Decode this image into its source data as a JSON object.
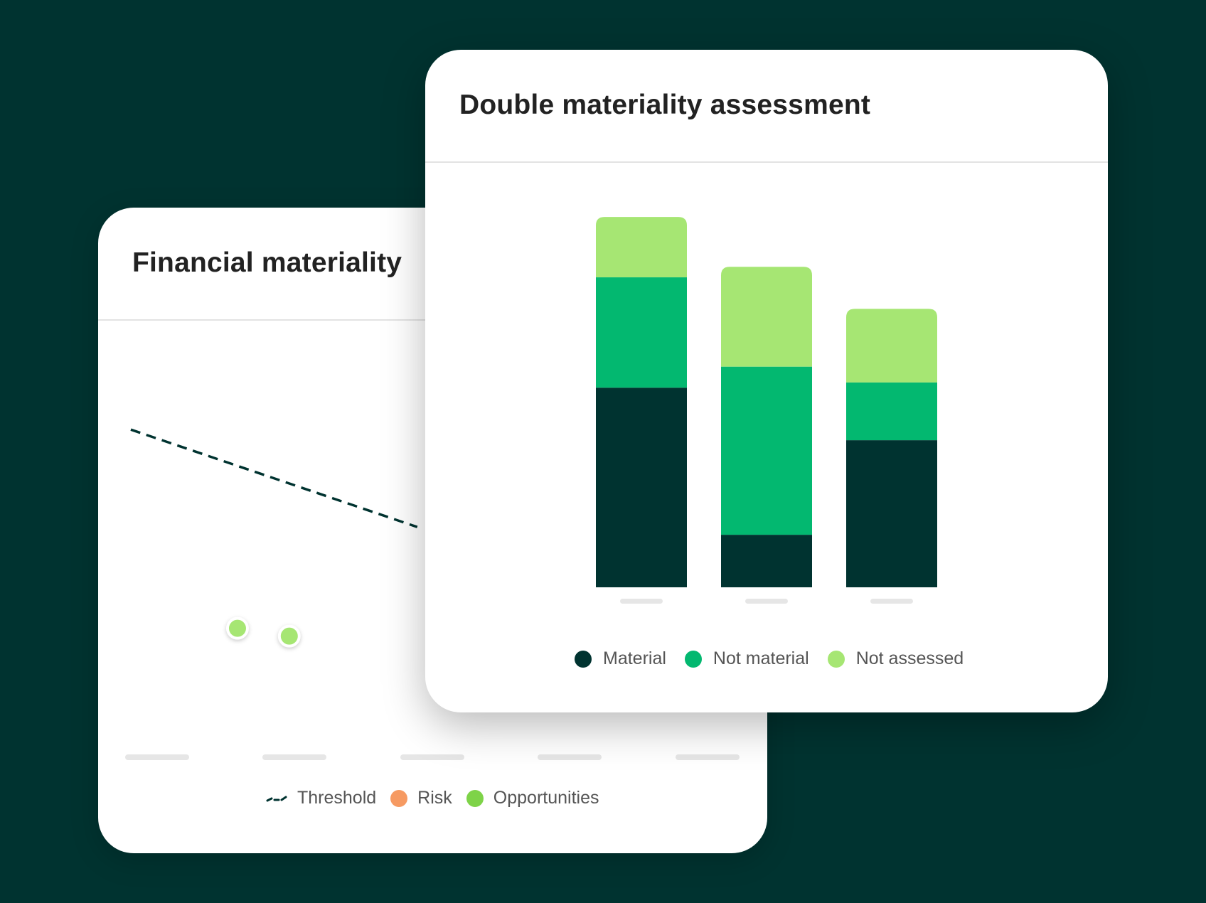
{
  "colors": {
    "background": "#003330",
    "material": "#003330",
    "not_material": "#03b870",
    "not_assessed": "#a6e673",
    "risk": "#f69a62",
    "opportunities": "#7ed348",
    "threshold": "#003330",
    "placeholder": "#e6e6e6"
  },
  "financial_card": {
    "title": "Financial materiality",
    "legend": [
      {
        "label": "Threshold",
        "icon": "threshold-dash-icon"
      },
      {
        "label": "Risk",
        "icon": "risk-dot-icon"
      },
      {
        "label": "Opportunities",
        "icon": "opportunities-dot-icon"
      }
    ]
  },
  "dma_card": {
    "title": "Double materiality assessment",
    "legend": [
      {
        "label": "Material"
      },
      {
        "label": "Not material"
      },
      {
        "label": "Not assessed"
      }
    ]
  },
  "chart_data": [
    {
      "type": "bar",
      "stacked": true,
      "title": "Double materiality assessment",
      "categories": [
        "",
        "",
        ""
      ],
      "series": [
        {
          "name": "Material",
          "values": [
            38,
            10,
            28
          ]
        },
        {
          "name": "Not material",
          "values": [
            21,
            32,
            11
          ]
        },
        {
          "name": "Not assessed",
          "values": [
            11.5,
            19,
            14
          ]
        }
      ],
      "ylim": [
        0,
        72
      ],
      "legend_position": "bottom"
    },
    {
      "type": "scatter",
      "title": "Financial materiality",
      "xlim": [
        0,
        100
      ],
      "ylim": [
        0,
        100
      ],
      "threshold": {
        "name": "Threshold",
        "x": [
          0,
          47
        ],
        "y": [
          85,
          60
        ]
      },
      "series": [
        {
          "name": "Risk",
          "points": []
        },
        {
          "name": "Opportunities",
          "points": [
            {
              "x": 17.5,
              "y": 34
            },
            {
              "x": 26,
              "y": 32
            }
          ]
        }
      ],
      "legend_position": "bottom"
    }
  ]
}
